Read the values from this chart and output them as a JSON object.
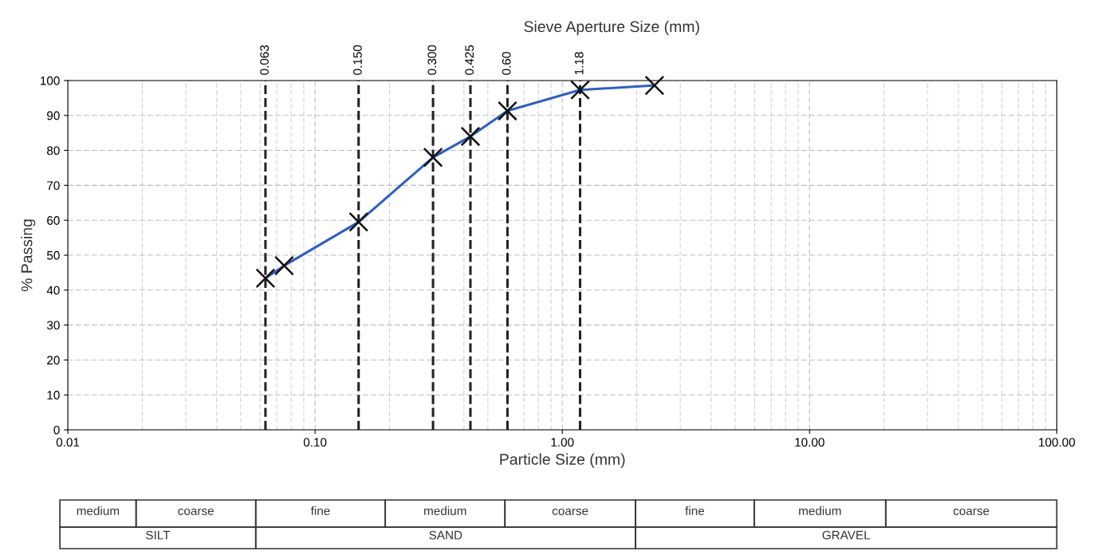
{
  "chart_data": {
    "type": "line",
    "xlabel": "Particle Size (mm)",
    "ylabel": "% Passing",
    "x": [
      0.063,
      0.075,
      0.15,
      0.3,
      0.425,
      0.6,
      1.18,
      2.36
    ],
    "series": [
      {
        "color": "#2f5fbf",
        "values": [
          43.4,
          47,
          59.5,
          78,
          84,
          91.3,
          97.3,
          98.6
        ]
      }
    ],
    "marker": "cross",
    "line_style": "solid",
    "log": "x",
    "grid": true,
    "legend": false,
    "xlim": [
      0.01,
      100
    ],
    "xticks": [
      0.01,
      {
        "value": 0.1,
        "label": "0.10"
      },
      {
        "value": 1,
        "label": "1.00"
      },
      {
        "value": 10,
        "label": "10.00"
      },
      {
        "value": 100,
        "label": "100.00"
      }
    ],
    "ylim": [
      0,
      100
    ],
    "yticks": [
      0,
      10,
      20,
      30,
      40,
      50,
      60,
      70,
      80,
      90,
      100
    ],
    "ref_lines": [
      {
        "axis": "x",
        "value": 0.063,
        "label": "0.063",
        "color": "#222222",
        "line_style": "dashed"
      },
      {
        "axis": "x",
        "value": 0.15,
        "label": "0.150",
        "color": "#222222",
        "line_style": "dashed"
      },
      {
        "axis": "x",
        "value": 0.3,
        "label": "0.300",
        "color": "#222222",
        "line_style": "dashed"
      },
      {
        "axis": "x",
        "value": 0.425,
        "label": "0.425",
        "color": "#222222",
        "line_style": "dashed"
      },
      {
        "axis": "x",
        "value": 0.6,
        "label": "0.60",
        "color": "#222222",
        "line_style": "dashed"
      },
      {
        "axis": "x",
        "value": 1.18,
        "label": "1.18",
        "color": "#222222",
        "line_style": "dashed"
      }
    ],
    "annotations": [
      "medium",
      "coarse",
      "fine",
      "medium",
      "coarse",
      "fine",
      "medium",
      "coarse",
      "SILT",
      "SAND",
      "GRAVEL",
      "Sieve Aperture Size (mm)"
    ]
  }
}
